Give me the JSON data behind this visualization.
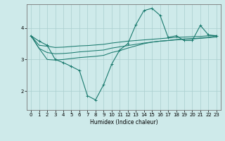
{
  "title": "",
  "xlabel": "Humidex (Indice chaleur)",
  "background_color": "#ceeaea",
  "grid_color": "#aacece",
  "line_color": "#1a7a6e",
  "xlim": [
    -0.5,
    23.5
  ],
  "ylim": [
    1.4,
    4.75
  ],
  "yticks": [
    2,
    3,
    4
  ],
  "xticks": [
    0,
    1,
    2,
    3,
    4,
    5,
    6,
    7,
    8,
    9,
    10,
    11,
    12,
    13,
    14,
    15,
    16,
    17,
    18,
    19,
    20,
    21,
    22,
    23
  ],
  "series": [
    [
      3.75,
      3.58,
      3.45,
      3.0,
      2.9,
      2.78,
      2.65,
      1.85,
      1.72,
      2.2,
      2.85,
      3.3,
      3.5,
      4.1,
      4.55,
      4.62,
      4.4,
      3.7,
      3.75,
      3.6,
      3.6,
      4.08,
      3.78,
      3.75
    ],
    [
      3.75,
      3.45,
      3.42,
      3.38,
      3.39,
      3.41,
      3.43,
      3.44,
      3.46,
      3.48,
      3.52,
      3.55,
      3.58,
      3.6,
      3.62,
      3.64,
      3.66,
      3.68,
      3.7,
      3.71,
      3.72,
      3.73,
      3.75,
      3.76
    ],
    [
      3.75,
      3.35,
      3.22,
      3.18,
      3.19,
      3.21,
      3.24,
      3.26,
      3.28,
      3.3,
      3.36,
      3.4,
      3.44,
      3.48,
      3.52,
      3.55,
      3.58,
      3.6,
      3.62,
      3.64,
      3.65,
      3.67,
      3.69,
      3.71
    ],
    [
      3.75,
      3.35,
      3.0,
      2.98,
      3.0,
      3.03,
      3.06,
      3.08,
      3.1,
      3.13,
      3.22,
      3.28,
      3.36,
      3.43,
      3.5,
      3.55,
      3.58,
      3.6,
      3.63,
      3.65,
      3.66,
      3.68,
      3.7,
      3.75
    ]
  ]
}
